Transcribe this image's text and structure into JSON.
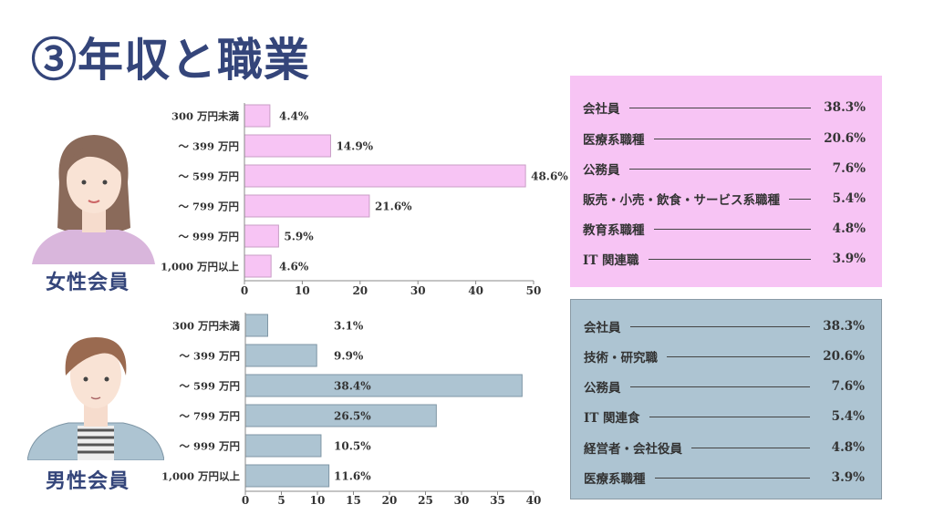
{
  "title": "③年収と職業",
  "female": {
    "label": "女性会員",
    "occupations": [
      {
        "name": "会社員",
        "value": "38.3%"
      },
      {
        "name": "医療系職種",
        "value": "20.6%"
      },
      {
        "name": "公務員",
        "value": "7.6%"
      },
      {
        "name": "販売・小売・飲食・サービス系職種",
        "value": "5.4%"
      },
      {
        "name": "教育系職種",
        "value": "4.8%"
      },
      {
        "name": "IT 関連職",
        "value": "3.9%"
      }
    ]
  },
  "male": {
    "label": "男性会員",
    "occupations": [
      {
        "name": "会社員",
        "value": "38.3%"
      },
      {
        "name": "技術・研究職",
        "value": "20.6%"
      },
      {
        "name": "公務員",
        "value": "7.6%"
      },
      {
        "name": "IT 関連食",
        "value": "5.4%"
      },
      {
        "name": "経営者・会社役員",
        "value": "4.8%"
      },
      {
        "name": "医療系職種",
        "value": "3.9%"
      }
    ]
  },
  "colors": {
    "female": "#f7c4f4",
    "male": "#adc4d2",
    "title": "#34457a"
  },
  "chart_data": [
    {
      "type": "bar",
      "orientation": "horizontal",
      "categories": [
        "300 万円未満",
        "～ 399 万円",
        "～ 599 万円",
        "～ 799 万円",
        "～ 999 万円",
        "1,000 万円以上"
      ],
      "values": [
        4.4,
        14.9,
        48.6,
        21.6,
        5.9,
        4.6
      ],
      "data_labels": [
        "4.4%",
        "14.9%",
        "48.6%",
        "21.6%",
        "5.9%",
        "4.6%"
      ],
      "xlim": [
        0,
        50
      ],
      "xticks": [
        0,
        10,
        20,
        30,
        40,
        50
      ],
      "grid": false
    },
    {
      "type": "bar",
      "orientation": "horizontal",
      "categories": [
        "300 万円未満",
        "～ 399 万円",
        "～ 599 万円",
        "～ 799 万円",
        "～ 999 万円",
        "1,000 万円以上"
      ],
      "values": [
        3.1,
        9.9,
        38.4,
        26.5,
        10.5,
        11.6
      ],
      "data_labels": [
        "3.1%",
        "9.9%",
        "38.4%",
        "26.5%",
        "10.5%",
        "11.6%"
      ],
      "xlim": [
        0,
        40
      ],
      "xticks": [
        0,
        5,
        10,
        15,
        20,
        25,
        30,
        35,
        40
      ],
      "grid": false
    }
  ]
}
